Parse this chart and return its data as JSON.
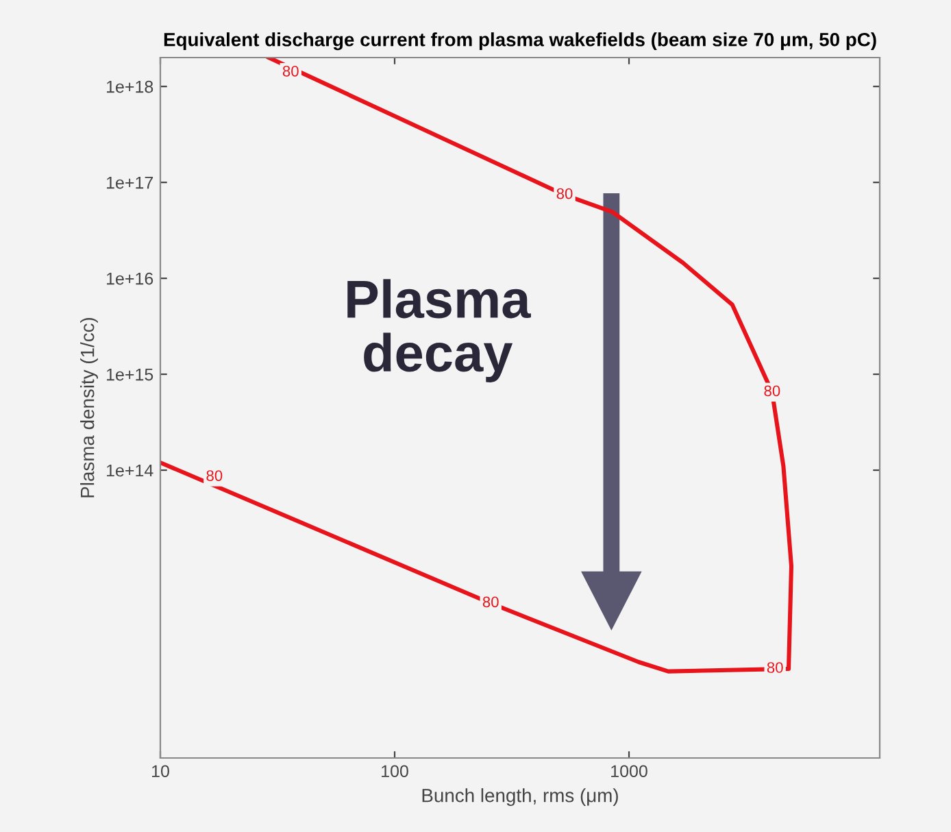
{
  "chart_data": {
    "type": "line",
    "title": "Equivalent discharge current from plasma wakefields (beam size 70 μm, 50 pC)",
    "xlabel": "Bunch length, rms (μm)",
    "ylabel": "Plasma density (1/cc)",
    "log": "xy",
    "xlim": [
      10,
      11750
    ],
    "ylim": [
      100000000000.0,
      2e+18
    ],
    "xticks": [
      10,
      100,
      1000
    ],
    "yticks": [
      {
        "value": 100000000000000.0,
        "label": "1e+14"
      },
      {
        "value": 1000000000000000.0,
        "label": "1e+15"
      },
      {
        "value": 1e+16,
        "label": "1e+16"
      },
      {
        "value": 1e+17,
        "label": "1e+17"
      },
      {
        "value": 1e+18,
        "label": "1e+18"
      }
    ],
    "series": [
      {
        "color": "#e8141c",
        "x": [
          29,
          531,
          851,
          1700,
          2760,
          4080,
          4560,
          4930,
          4800,
          1470,
          1100,
          257,
          10
        ],
        "values": [
          2e+18,
          7.4e+16,
          4.9e+16,
          1.45e+16,
          5300000000000000.0,
          650000000000000.0,
          110000000000000.0,
          10000000000000.0,
          850000000000.0,
          800000000000.0,
          1000000000000.0,
          4100000000000.0,
          120000000000000.0
        ]
      }
    ],
    "annotations": [
      "Plasma\ndecay",
      {
        "text": "80",
        "x": 36,
        "y": 1.4e+18
      },
      {
        "text": "80",
        "x": 531,
        "y": 7.4e+16
      },
      {
        "text": "80",
        "x": 4080,
        "y": 650000000000000.0
      },
      {
        "text": "80",
        "x": 4200,
        "y": 850000000000.0
      },
      {
        "text": "80",
        "x": 257,
        "y": 4100000000000.0
      },
      {
        "text": "80",
        "x": 17,
        "y": 85000000000000.0
      }
    ],
    "grid": false,
    "marker": "none",
    "line_style": "solid"
  }
}
